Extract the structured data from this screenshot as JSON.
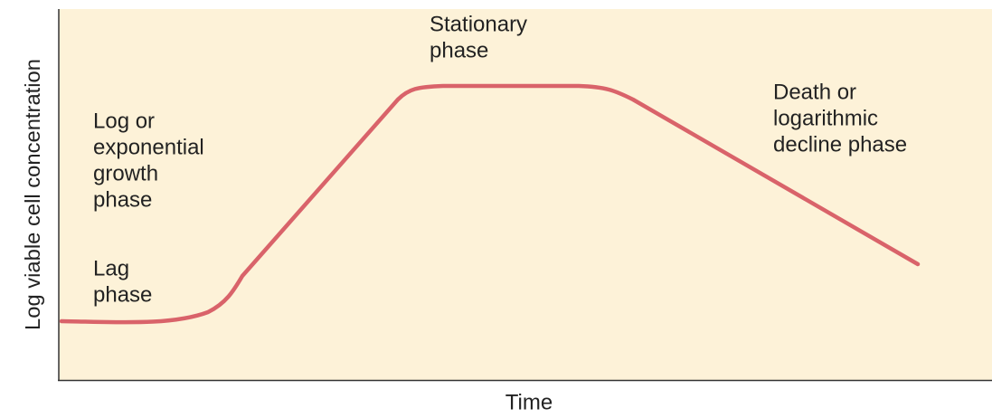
{
  "axes": {
    "y_label": "Log viable cell concentration",
    "x_label": "Time"
  },
  "phases": [
    {
      "lines": [
        "Lag",
        "phase"
      ]
    },
    {
      "lines": [
        "Log or",
        "exponential",
        "growth",
        "phase"
      ]
    },
    {
      "lines": [
        "Stationary",
        "phase"
      ]
    },
    {
      "lines": [
        "Death or",
        "logarithmic",
        "decline phase"
      ]
    }
  ]
}
